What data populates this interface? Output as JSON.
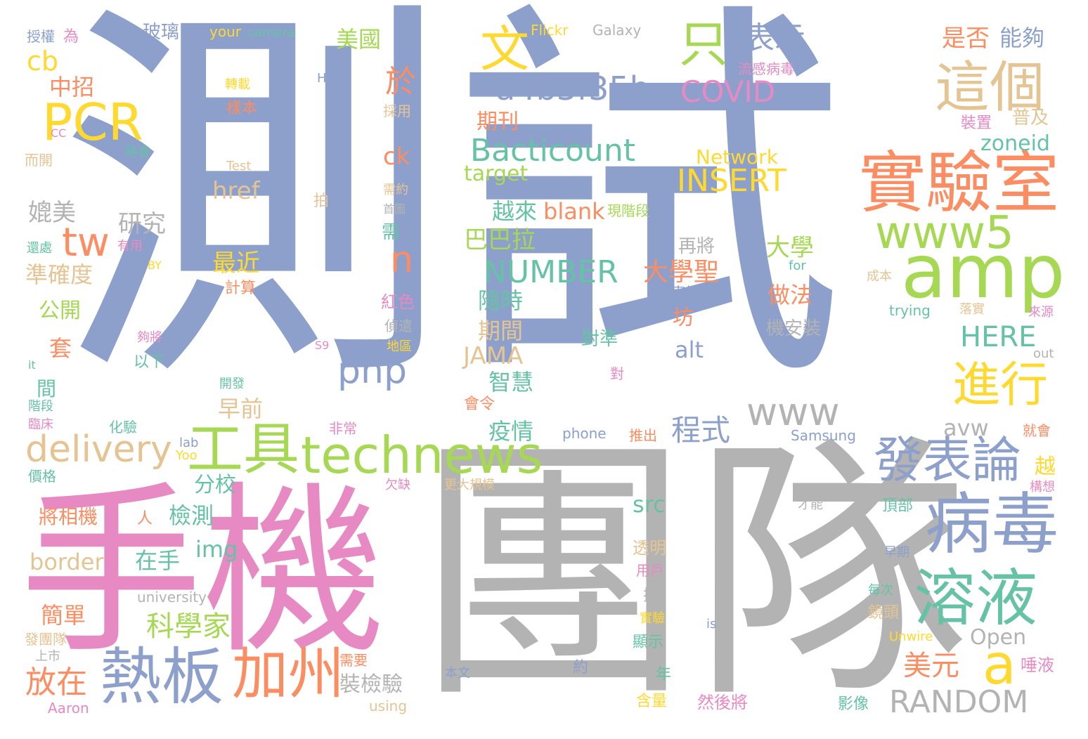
{
  "palette": {
    "blue": "#8da0cb",
    "gray": "#b3b3b3",
    "pink": "#e78ac3",
    "orange": "#fc8d62",
    "green": "#a6d854",
    "yellow": "#ffd92f",
    "teal": "#66c2a5",
    "tan": "#e5c494"
  },
  "words": [
    {
      "text": "測試",
      "color": "blue"
    },
    {
      "text": "團隊",
      "color": "gray"
    },
    {
      "text": "手機",
      "color": "pink"
    },
    {
      "text": "實驗室",
      "color": "orange"
    },
    {
      "text": "amp",
      "color": "green"
    },
    {
      "text": "病毒",
      "color": "blue"
    },
    {
      "text": "工具",
      "color": "green"
    },
    {
      "text": "technews",
      "color": "green"
    },
    {
      "text": "熱板",
      "color": "blue"
    },
    {
      "text": "加州",
      "color": "orange"
    },
    {
      "text": "溶液",
      "color": "teal"
    },
    {
      "text": "www5",
      "color": "green"
    },
    {
      "text": "PCR",
      "color": "yellow"
    },
    {
      "text": "這個",
      "color": "tan"
    },
    {
      "text": "發表論",
      "color": "blue"
    },
    {
      "text": "進行",
      "color": "yellow"
    },
    {
      "text": "delivery",
      "color": "tan"
    },
    {
      "text": "文",
      "color": "yellow"
    },
    {
      "text": "只",
      "color": "green"
    },
    {
      "text": "a",
      "color": "yellow"
    },
    {
      "text": "tw",
      "color": "orange"
    },
    {
      "text": "www",
      "color": "gray"
    },
    {
      "text": "a4b3f35b",
      "color": "blue"
    },
    {
      "text": "php",
      "color": "blue"
    },
    {
      "text": "表示",
      "color": "blue"
    },
    {
      "text": "Bacticount",
      "color": "teal"
    },
    {
      "text": "放在",
      "color": "orange"
    },
    {
      "text": "RANDOM",
      "color": "gray"
    },
    {
      "text": "NUMBER",
      "color": "teal"
    },
    {
      "text": "INSERT",
      "color": "yellow"
    },
    {
      "text": "COVID",
      "color": "pink"
    },
    {
      "text": "科學家",
      "color": "green"
    },
    {
      "text": "n",
      "color": "orange"
    },
    {
      "text": "程式",
      "color": "blue"
    },
    {
      "text": "美元",
      "color": "orange"
    },
    {
      "text": "於",
      "color": "orange"
    },
    {
      "text": "HERE",
      "color": "teal"
    },
    {
      "text": "cb",
      "color": "yellow"
    },
    {
      "text": "Network",
      "color": "yellow"
    },
    {
      "text": "是否",
      "color": "orange"
    },
    {
      "text": "能夠",
      "color": "blue"
    },
    {
      "text": "美國",
      "color": "green"
    },
    {
      "text": "中招",
      "color": "orange"
    },
    {
      "text": "期刊",
      "color": "orange"
    },
    {
      "text": "ck",
      "color": "orange"
    },
    {
      "text": "target",
      "color": "green"
    },
    {
      "text": "href",
      "color": "tan"
    },
    {
      "text": "研究",
      "color": "gray"
    },
    {
      "text": "媲美",
      "color": "gray"
    },
    {
      "text": "越來",
      "color": "teal"
    },
    {
      "text": "blank",
      "color": "orange"
    },
    {
      "text": "巴巴拉",
      "color": "green"
    },
    {
      "text": "大學",
      "color": "green"
    },
    {
      "text": "大學聖",
      "color": "orange"
    },
    {
      "text": "最近",
      "color": "yellow"
    },
    {
      "text": "準確度",
      "color": "tan"
    },
    {
      "text": "隨時",
      "color": "teal"
    },
    {
      "text": "做法",
      "color": "orange"
    },
    {
      "text": "期間",
      "color": "tan"
    },
    {
      "text": "JAMA",
      "color": "tan"
    },
    {
      "text": "智慧",
      "color": "teal"
    },
    {
      "text": "早前",
      "color": "tan"
    },
    {
      "text": "疫情",
      "color": "teal"
    },
    {
      "text": "alt",
      "color": "blue"
    },
    {
      "text": "zoneid",
      "color": "teal"
    },
    {
      "text": "avw",
      "color": "gray"
    },
    {
      "text": "分校",
      "color": "teal"
    },
    {
      "text": "檢測",
      "color": "teal"
    },
    {
      "text": "img",
      "color": "teal"
    },
    {
      "text": "border",
      "color": "tan"
    },
    {
      "text": "在手",
      "color": "teal"
    },
    {
      "text": "src",
      "color": "teal"
    },
    {
      "text": "Open",
      "color": "gray"
    },
    {
      "text": "簡單",
      "color": "orange"
    },
    {
      "text": "公開",
      "color": "green"
    },
    {
      "text": "套",
      "color": "orange"
    },
    {
      "text": "機安裝",
      "color": "gray"
    },
    {
      "text": "裝檢驗",
      "color": "gray"
    },
    {
      "text": "對準",
      "color": "teal"
    },
    {
      "text": "坊",
      "color": "orange"
    },
    {
      "text": "再將",
      "color": "gray"
    },
    {
      "text": "將相機",
      "color": "orange"
    },
    {
      "text": "玻璃",
      "color": "blue"
    },
    {
      "text": "Flickr",
      "color": "yellow"
    },
    {
      "text": "Galaxy",
      "color": "gray"
    },
    {
      "text": "camera",
      "color": "teal"
    },
    {
      "text": "your",
      "color": "yellow"
    },
    {
      "text": "授權",
      "color": "blue"
    },
    {
      "text": "為",
      "color": "pink"
    },
    {
      "text": "轉載",
      "color": "yellow"
    },
    {
      "text": "樣本",
      "color": "orange"
    },
    {
      "text": "HK",
      "color": "blue"
    },
    {
      "text": "流感病毒",
      "color": "pink"
    },
    {
      "text": "採用",
      "color": "tan"
    },
    {
      "text": "裝置",
      "color": "pink"
    },
    {
      "text": "普及",
      "color": "tan"
    },
    {
      "text": "CC",
      "color": "pink"
    },
    {
      "text": "將會",
      "color": "teal"
    },
    {
      "text": "而開",
      "color": "tan"
    },
    {
      "text": "Test",
      "color": "tan"
    },
    {
      "text": "需約",
      "color": "tan"
    },
    {
      "text": "拍",
      "color": "tan"
    },
    {
      "text": "首圖",
      "color": "gray"
    },
    {
      "text": "現階段",
      "color": "green"
    },
    {
      "text": "需",
      "color": "teal"
    },
    {
      "text": "還處",
      "color": "teal"
    },
    {
      "text": "有用",
      "color": "pink"
    },
    {
      "text": "BY",
      "color": "yellow"
    },
    {
      "text": "計算",
      "color": "orange"
    },
    {
      "text": "南加州",
      "color": "blue"
    },
    {
      "text": "for",
      "color": "teal"
    },
    {
      "text": "成本",
      "color": "tan"
    },
    {
      "text": "trying",
      "color": "teal"
    },
    {
      "text": "落實",
      "color": "tan"
    },
    {
      "text": "來源",
      "color": "pink"
    },
    {
      "text": "紅色",
      "color": "pink"
    },
    {
      "text": "偵遣",
      "color": "gray"
    },
    {
      "text": "夠將",
      "color": "pink"
    },
    {
      "text": "地區",
      "color": "yellow"
    },
    {
      "text": "S9",
      "color": "pink"
    },
    {
      "text": "以下",
      "color": "teal"
    },
    {
      "text": "it",
      "color": "teal"
    },
    {
      "text": "out",
      "color": "gray"
    },
    {
      "text": "對",
      "color": "pink"
    },
    {
      "text": "開發",
      "color": "teal"
    },
    {
      "text": "會令",
      "color": "orange"
    },
    {
      "text": "間",
      "color": "teal"
    },
    {
      "text": "階段",
      "color": "teal"
    },
    {
      "text": "臨床",
      "color": "pink"
    },
    {
      "text": "化驗",
      "color": "teal"
    },
    {
      "text": "非常",
      "color": "pink"
    },
    {
      "text": "phone",
      "color": "blue"
    },
    {
      "text": "推出",
      "color": "orange"
    },
    {
      "text": "Samsung",
      "color": "blue"
    },
    {
      "text": "就會",
      "color": "orange"
    },
    {
      "text": "lab",
      "color": "blue"
    },
    {
      "text": "Yoo",
      "color": "yellow"
    },
    {
      "text": "價格",
      "color": "teal"
    },
    {
      "text": "欠缺",
      "color": "pink"
    },
    {
      "text": "更大規模",
      "color": "tan"
    },
    {
      "text": "越",
      "color": "yellow"
    },
    {
      "text": "構想",
      "color": "pink"
    },
    {
      "text": "人",
      "color": "orange"
    },
    {
      "text": "才能",
      "color": "gray"
    },
    {
      "text": "頂部",
      "color": "teal"
    },
    {
      "text": "透明",
      "color": "tan"
    },
    {
      "text": "早期",
      "color": "blue"
    },
    {
      "text": "用戶",
      "color": "pink"
    },
    {
      "text": "university",
      "color": "gray"
    },
    {
      "text": "攝",
      "color": "gray"
    },
    {
      "text": "每次",
      "color": "teal"
    },
    {
      "text": "實驗",
      "color": "yellow"
    },
    {
      "text": "鏡頭",
      "color": "tan"
    },
    {
      "text": "顯示",
      "color": "teal"
    },
    {
      "text": "is",
      "color": "blue"
    },
    {
      "text": "Unwire",
      "color": "yellow"
    },
    {
      "text": "發團隊",
      "color": "tan"
    },
    {
      "text": "上市",
      "color": "gray"
    },
    {
      "text": "需要",
      "color": "orange"
    },
    {
      "text": "約",
      "color": "blue"
    },
    {
      "text": "唾液",
      "color": "pink"
    },
    {
      "text": "本文",
      "color": "blue"
    },
    {
      "text": "年",
      "color": "teal"
    },
    {
      "text": "然後將",
      "color": "pink"
    },
    {
      "text": "Aaron",
      "color": "pink"
    },
    {
      "text": "using",
      "color": "tan"
    },
    {
      "text": "含量",
      "color": "yellow"
    },
    {
      "text": "影像",
      "color": "teal"
    }
  ]
}
